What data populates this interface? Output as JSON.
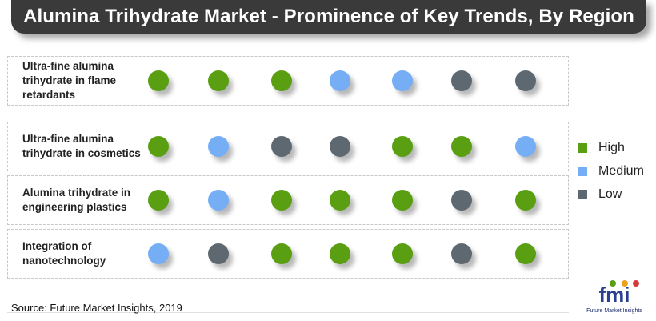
{
  "title": "Alumina Trihydrate Market - Prominence of Key Trends, By Region",
  "source": "Source: Future Market Insights, 2019",
  "logo": {
    "name": "fmi",
    "tagline": "Future Market Insights"
  },
  "colors": {
    "High": "#5a9e12",
    "Medium": "#75aef5",
    "Low": "#5e6870"
  },
  "legend": [
    {
      "label": "High",
      "level": "High"
    },
    {
      "label": "Medium",
      "level": "Medium"
    },
    {
      "label": "Low",
      "level": "Low"
    }
  ],
  "chart_data": {
    "type": "table",
    "title": "Alumina Trihydrate Market - Prominence of Key Trends, By Region",
    "rows": [
      {
        "label_lines": [
          "Ultra-fine alumina",
          "trihydrate in flame",
          "retardants"
        ],
        "values": [
          "High",
          "High",
          "High",
          "Medium",
          "Medium",
          "Low",
          "Low"
        ]
      },
      {
        "label_lines": [
          "Ultra-fine alumina",
          "trihydrate in cosmetics"
        ],
        "values": [
          "High",
          "Medium",
          "Low",
          "Low",
          "High",
          "High",
          "Medium"
        ]
      },
      {
        "label_lines": [
          "Alumina trihydrate in",
          "engineering plastics"
        ],
        "values": [
          "High",
          "Medium",
          "High",
          "High",
          "High",
          "Low",
          "High"
        ]
      },
      {
        "label_lines": [
          "Integration of",
          "nanotechnology"
        ],
        "values": [
          "Medium",
          "Low",
          "High",
          "High",
          "High",
          "Low",
          "High"
        ]
      }
    ]
  }
}
